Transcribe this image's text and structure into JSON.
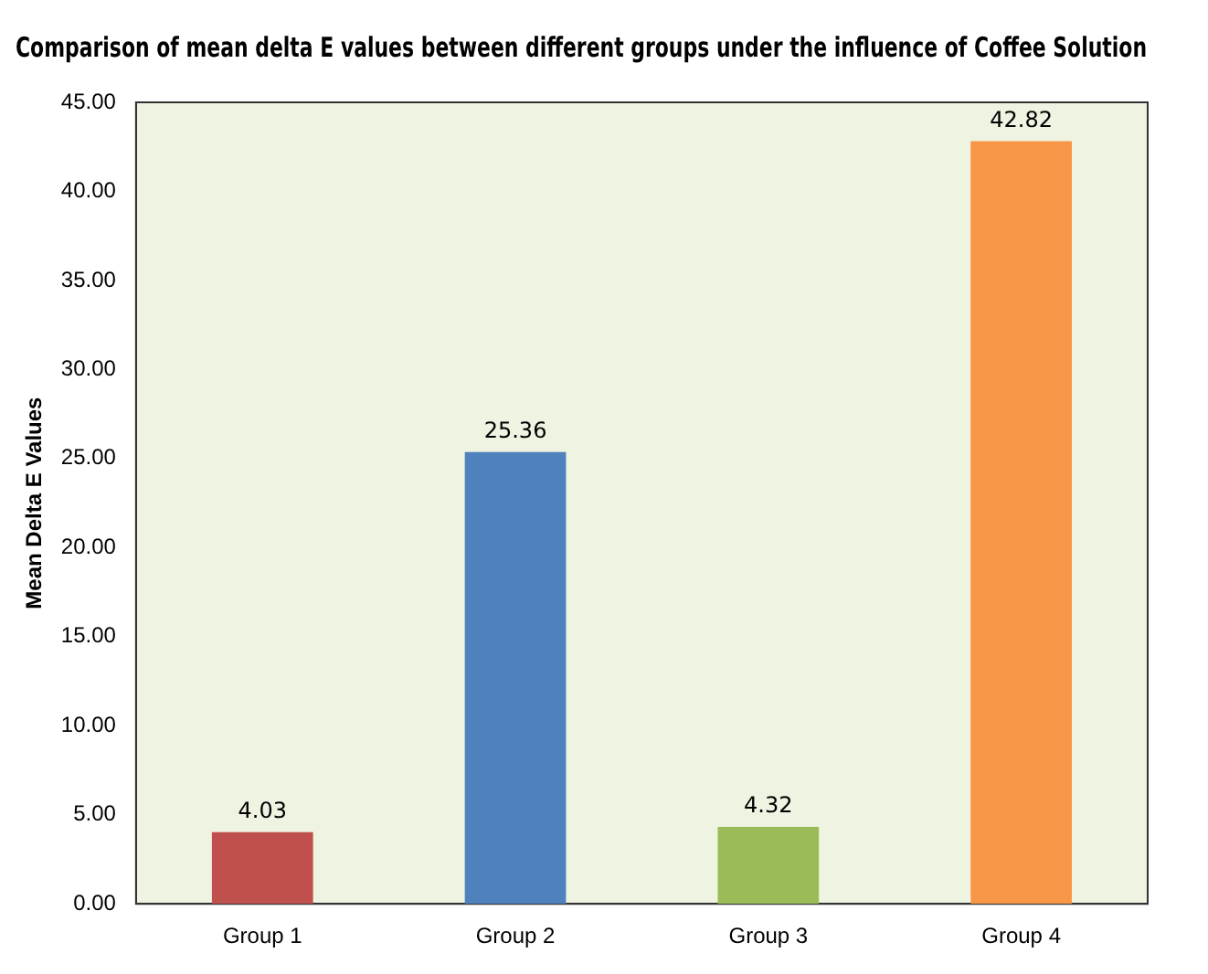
{
  "chart_data": {
    "type": "bar",
    "title": "Comparison of mean delta E values between different groups under the influence of Coffee Solution",
    "ylabel": "Mean Delta E Values",
    "categories": [
      "Group 1",
      "Group 2",
      "Group 3",
      "Group 4"
    ],
    "values": [
      4.03,
      25.36,
      4.32,
      42.82
    ],
    "colors": [
      "#c0504d",
      "#4f81bd",
      "#9bbb59",
      "#f79646"
    ],
    "ylim": [
      0,
      45
    ],
    "yticks": [
      {
        "value": 0,
        "label": "0.00"
      },
      {
        "value": 5,
        "label": "5.00"
      },
      {
        "value": 10,
        "label": "10.00"
      },
      {
        "value": 15,
        "label": "15.00"
      },
      {
        "value": 20,
        "label": "20.00"
      },
      {
        "value": 25,
        "label": "25.00"
      },
      {
        "value": 30,
        "label": "30.00"
      },
      {
        "value": 35,
        "label": "35.00"
      },
      {
        "value": 40,
        "label": "40.00"
      },
      {
        "value": 45,
        "label": "45.00"
      }
    ],
    "data_labels": true,
    "grid": false,
    "legend": false
  }
}
